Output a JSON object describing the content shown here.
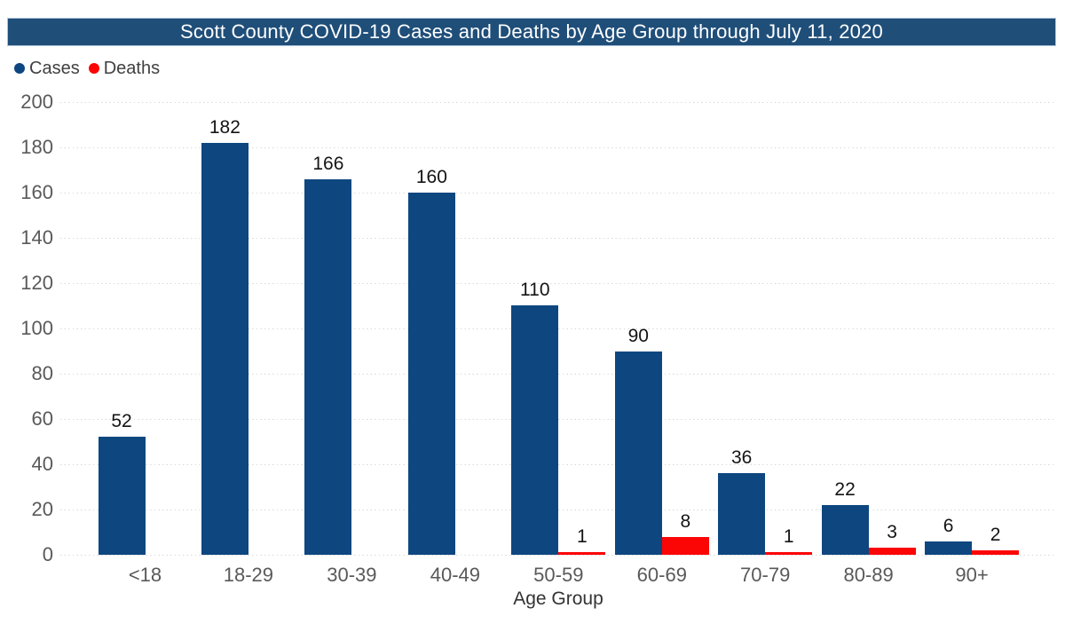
{
  "colors": {
    "title_bar_bg": "#1F4E79",
    "title_text": "#FFFFFF",
    "cases": "#0E4780",
    "deaths": "#FB0505",
    "gridline": "#D8D8D8",
    "tick_text": "#595959",
    "value_text": "#141414"
  },
  "chart_data": {
    "type": "bar",
    "title": "Scott County COVID-19 Cases and Deaths by Age Group through July 11, 2020",
    "xlabel": "Age Group",
    "ylabel": "",
    "categories": [
      "<18",
      "18-29",
      "30-39",
      "40-49",
      "50-59",
      "60-69",
      "70-79",
      "80-89",
      "90+"
    ],
    "series": [
      {
        "name": "Cases",
        "color": "#0E4780",
        "values": [
          52,
          182,
          166,
          160,
          110,
          90,
          36,
          22,
          6
        ]
      },
      {
        "name": "Deaths",
        "color": "#FB0505",
        "values": [
          null,
          null,
          null,
          null,
          1,
          8,
          1,
          3,
          2
        ]
      }
    ],
    "ylim": [
      0,
      200
    ],
    "ytick_step": 20,
    "yticks": [
      0,
      20,
      40,
      60,
      80,
      100,
      120,
      140,
      160,
      180,
      200
    ],
    "grid": "horizontal-dotted",
    "legend_position": "top-left",
    "legend_marker": "circle",
    "value_labels": true
  }
}
